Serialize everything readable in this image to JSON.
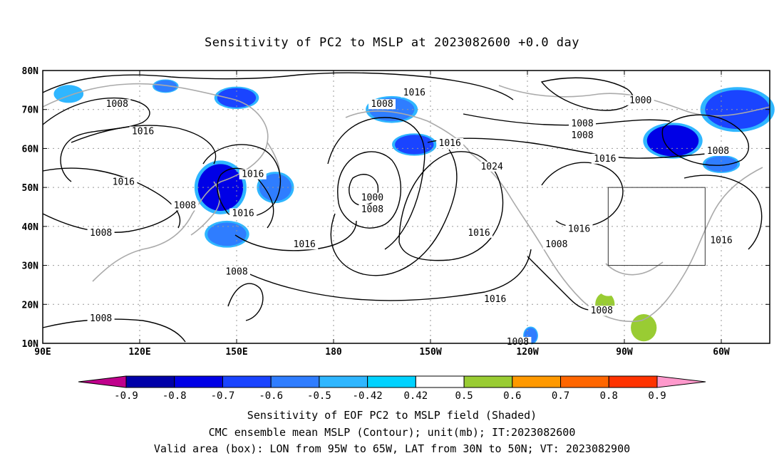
{
  "chart_data": {
    "type": "heatmap",
    "title": "Sensitivity of PC2 to MSLP at 2023082600 +0.0 day",
    "x_ticks": [
      "90E",
      "120E",
      "150E",
      "180",
      "150W",
      "120W",
      "90W",
      "60W"
    ],
    "x_tick_values": [
      90,
      120,
      150,
      180,
      210,
      240,
      270,
      300
    ],
    "y_ticks": [
      "80N",
      "70N",
      "60N",
      "50N",
      "40N",
      "30N",
      "20N",
      "10N"
    ],
    "y_tick_values": [
      80,
      70,
      60,
      50,
      40,
      30,
      20,
      10
    ],
    "xlim": [
      90,
      315
    ],
    "ylim": [
      10,
      80
    ],
    "grid": true,
    "contour_labels": [
      {
        "text": "1016",
        "lon": 205,
        "lat": 74
      },
      {
        "text": "1008",
        "lon": 195,
        "lat": 71
      },
      {
        "text": "1008",
        "lon": 113,
        "lat": 71
      },
      {
        "text": "1000",
        "lon": 275,
        "lat": 72
      },
      {
        "text": "1016",
        "lon": 121,
        "lat": 64
      },
      {
        "text": "1008",
        "lon": 257,
        "lat": 66
      },
      {
        "text": "1008",
        "lon": 257,
        "lat": 63
      },
      {
        "text": "1016",
        "lon": 216,
        "lat": 61
      },
      {
        "text": "1008",
        "lon": 299,
        "lat": 59
      },
      {
        "text": "1016",
        "lon": 264,
        "lat": 57
      },
      {
        "text": "1016",
        "lon": 155,
        "lat": 53
      },
      {
        "text": "1024",
        "lon": 229,
        "lat": 55
      },
      {
        "text": "1016",
        "lon": 115,
        "lat": 51
      },
      {
        "text": "1000",
        "lon": 192,
        "lat": 47
      },
      {
        "text": "1008",
        "lon": 192,
        "lat": 44
      },
      {
        "text": "1008",
        "lon": 134,
        "lat": 45
      },
      {
        "text": "1016",
        "lon": 152,
        "lat": 43
      },
      {
        "text": "1008",
        "lon": 108,
        "lat": 38
      },
      {
        "text": "1016",
        "lon": 225,
        "lat": 38
      },
      {
        "text": "1016",
        "lon": 256,
        "lat": 39
      },
      {
        "text": "1008",
        "lon": 249,
        "lat": 35
      },
      {
        "text": "1016",
        "lon": 171,
        "lat": 35
      },
      {
        "text": "1016",
        "lon": 300,
        "lat": 36
      },
      {
        "text": "1008",
        "lon": 150,
        "lat": 28
      },
      {
        "text": "1016",
        "lon": 230,
        "lat": 21
      },
      {
        "text": "1008",
        "lon": 263,
        "lat": 18
      },
      {
        "text": "1008",
        "lon": 108,
        "lat": 16
      },
      {
        "text": "1008",
        "lon": 237,
        "lat": 10
      }
    ],
    "valid_box": {
      "lon_min": 265,
      "lon_max": 295,
      "lat_min": 30,
      "lat_max": 50
    },
    "shaded_regions": [
      {
        "lon": 98,
        "lat": 74,
        "w": 8,
        "h": 4,
        "value": -0.45
      },
      {
        "lon": 128,
        "lat": 76,
        "w": 7,
        "h": 3,
        "value": -0.55
      },
      {
        "lon": 150,
        "lat": 73,
        "w": 12,
        "h": 5,
        "value": -0.6
      },
      {
        "lon": 145,
        "lat": 50,
        "w": 14,
        "h": 12,
        "value": -0.75
      },
      {
        "lon": 162,
        "lat": 50,
        "w": 10,
        "h": 7,
        "value": -0.5
      },
      {
        "lon": 147,
        "lat": 38,
        "w": 12,
        "h": 6,
        "value": -0.5
      },
      {
        "lon": 198,
        "lat": 70,
        "w": 14,
        "h": 6,
        "value": -0.5
      },
      {
        "lon": 205,
        "lat": 61,
        "w": 12,
        "h": 5,
        "value": -0.6
      },
      {
        "lon": 285,
        "lat": 62,
        "w": 16,
        "h": 8,
        "value": -0.75
      },
      {
        "lon": 305,
        "lat": 70,
        "w": 20,
        "h": 10,
        "value": -0.6
      },
      {
        "lon": 300,
        "lat": 56,
        "w": 10,
        "h": 4,
        "value": -0.5
      },
      {
        "lon": 264,
        "lat": 20,
        "w": 6,
        "h": 6,
        "value": 0.6
      },
      {
        "lon": 276,
        "lat": 14,
        "w": 8,
        "h": 7,
        "value": 0.55
      },
      {
        "lon": 265,
        "lat": 25,
        "w": 6,
        "h": 5,
        "value": 0.45
      },
      {
        "lon": 241,
        "lat": 12,
        "w": 4,
        "h": 4,
        "value": -0.5
      }
    ]
  },
  "colorbar": {
    "levels": [
      "-0.9",
      "-0.8",
      "-0.7",
      "-0.6",
      "-0.5",
      "-0.42",
      "0.42",
      "0.5",
      "0.6",
      "0.7",
      "0.8",
      "0.9"
    ],
    "colors": [
      "#c0008c",
      "#0000a8",
      "#0000e6",
      "#1a44ff",
      "#2f7dff",
      "#2fb6ff",
      "#00d2ff",
      "#ffffff",
      "#99cc33",
      "#ff9900",
      "#ff6600",
      "#ff3300",
      "#ff0000",
      "#ff99cc"
    ]
  },
  "captions": {
    "line1": "Sensitivity of EOF PC2 to MSLP field (Shaded)",
    "line2": "CMC ensemble mean MSLP (Contour); unit(mb); IT:2023082600",
    "line3": "Valid area (box): LON from 95W to 65W, LAT from 30N to 50N; VT: 2023082900"
  }
}
